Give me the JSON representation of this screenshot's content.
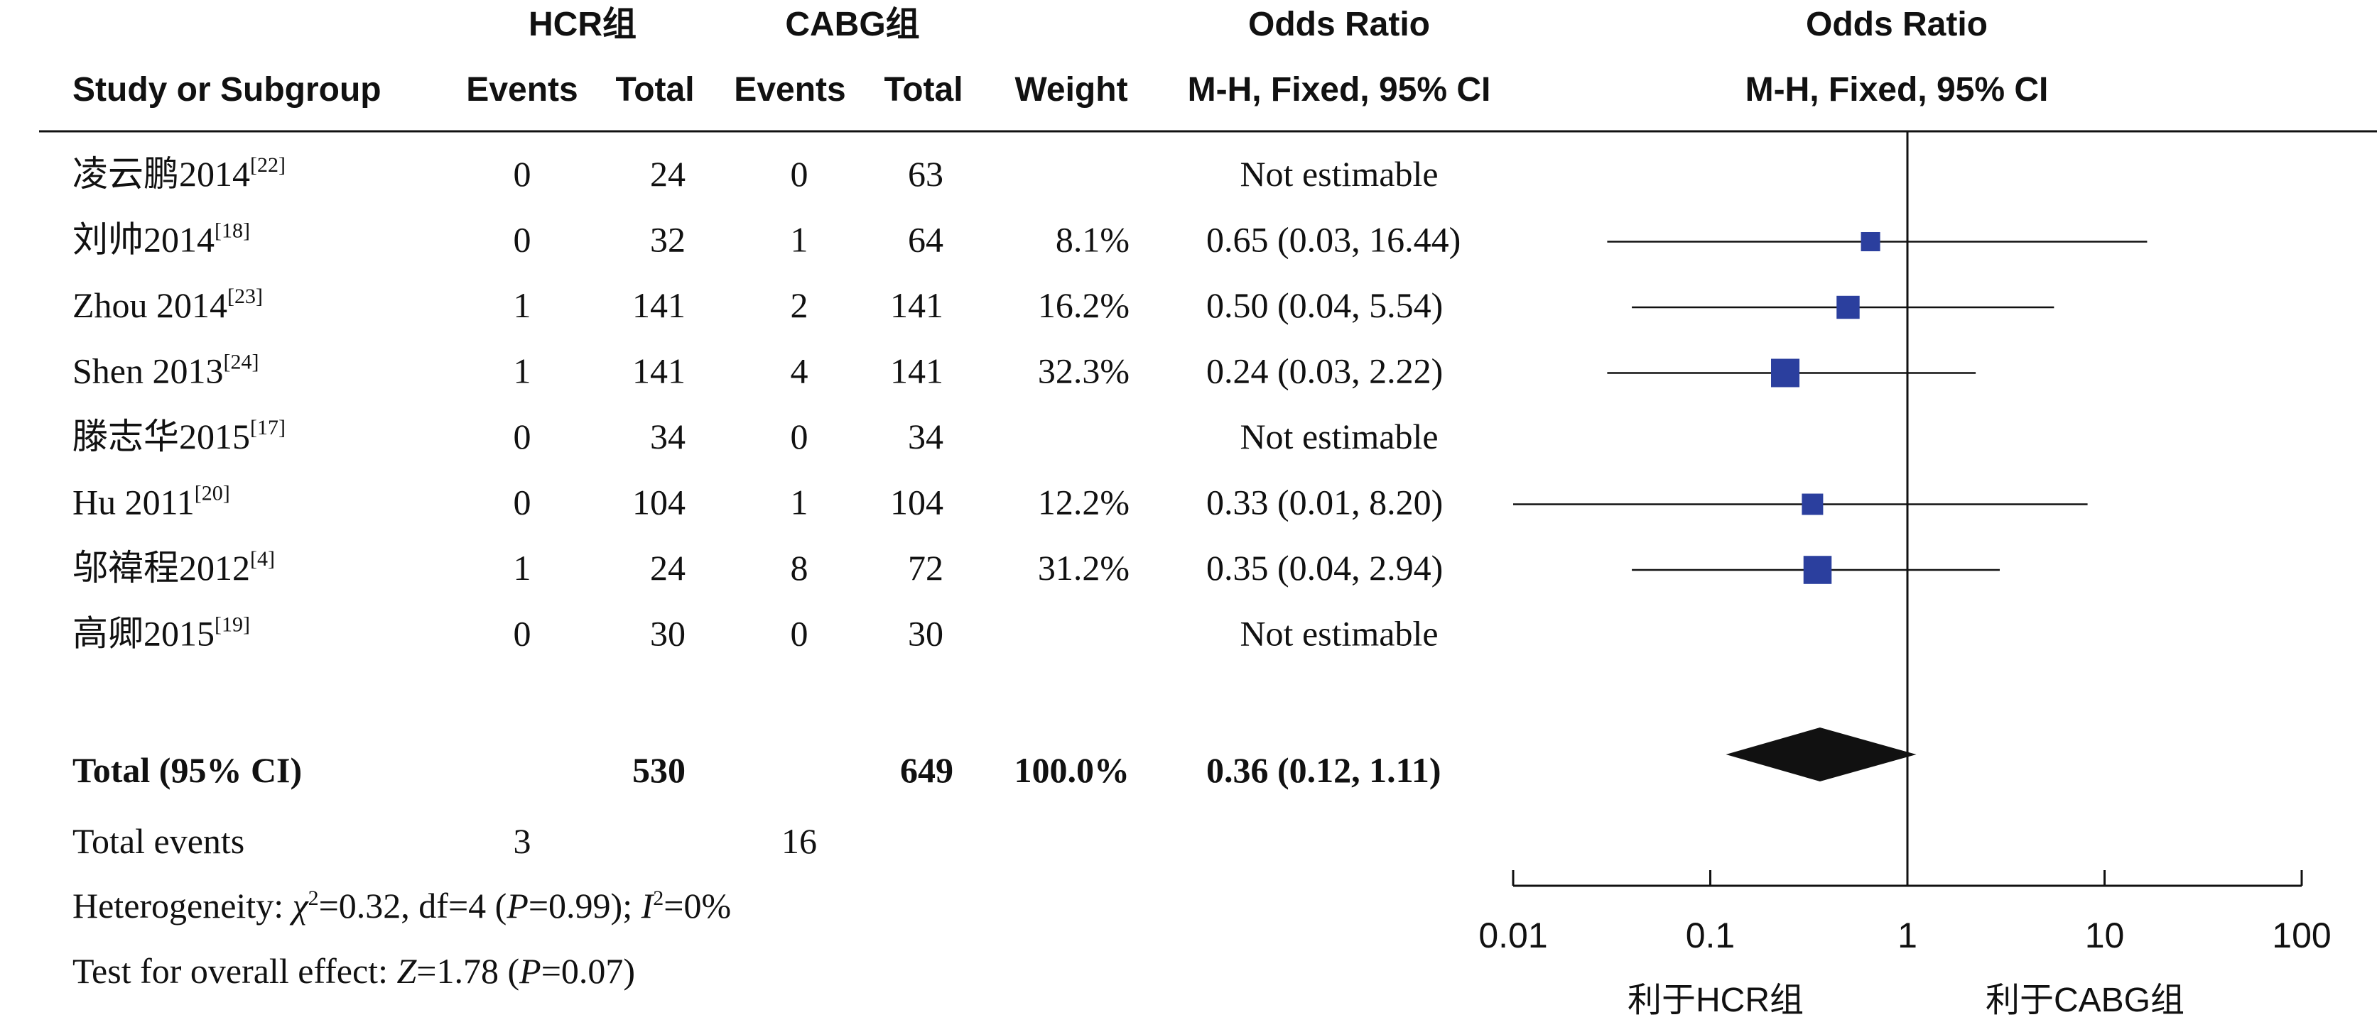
{
  "headers": {
    "group1": "HCR组",
    "group2": "CABG组",
    "or_top1": "Odds Ratio",
    "or_top2": "Odds Ratio",
    "study": "Study or Subgroup",
    "events1": "Events",
    "total1": "Total",
    "events2": "Events",
    "total2": "Total",
    "weight": "Weight",
    "method1": "M-H, Fixed, 95% CI",
    "method2": "M-H, Fixed, 95% CI"
  },
  "studies": [
    {
      "name": "凌云鹏2014",
      "ref": "[22]",
      "e1": "0",
      "t1": "24",
      "e2": "0",
      "t2": "63",
      "weight": "",
      "ci": "Not estimable"
    },
    {
      "name": "刘帅2014",
      "ref": "[18]",
      "e1": "0",
      "t1": "32",
      "e2": "1",
      "t2": "64",
      "weight": "8.1%",
      "ci": "0.65 (0.03, 16.44)"
    },
    {
      "name": "Zhou 2014",
      "ref": "[23]",
      "e1": "1",
      "t1": "141",
      "e2": "2",
      "t2": "141",
      "weight": "16.2%",
      "ci": "0.50 (0.04, 5.54)"
    },
    {
      "name": "Shen 2013",
      "ref": "[24]",
      "e1": "1",
      "t1": "141",
      "e2": "4",
      "t2": "141",
      "weight": "32.3%",
      "ci": "0.24 (0.03, 2.22)"
    },
    {
      "name": "滕志华2015",
      "ref": "[17]",
      "e1": "0",
      "t1": "34",
      "e2": "0",
      "t2": "34",
      "weight": "",
      "ci": "Not estimable"
    },
    {
      "name": "Hu 2011",
      "ref": "[20]",
      "e1": "0",
      "t1": "104",
      "e2": "1",
      "t2": "104",
      "weight": "12.2%",
      "ci": "0.33 (0.01, 8.20)"
    },
    {
      "name": "邬禕程2012",
      "ref": "[4]",
      "e1": "1",
      "t1": "24",
      "e2": "8",
      "t2": "72",
      "weight": "31.2%",
      "ci": "0.35 (0.04, 2.94)"
    },
    {
      "name": "高卿2015",
      "ref": "[19]",
      "e1": "0",
      "t1": "30",
      "e2": "0",
      "t2": "30",
      "weight": "",
      "ci": "Not estimable"
    }
  ],
  "total": {
    "label": "Total (95% CI)",
    "t1": "530",
    "t2": "649",
    "weight": "100.0%",
    "ci": "0.36 (0.12, 1.11)"
  },
  "total_events": {
    "label": "Total events",
    "e1": "3",
    "e2": "16"
  },
  "heterogeneity": {
    "prefix": "Heterogeneity: ",
    "chi": "χ",
    "chi_sq": "2",
    "chi_val": "=0.32, df=4 (",
    "p": "P",
    "p_val": "=0.99); ",
    "i": "I",
    "i_sq": "2",
    "i_val": "=0%"
  },
  "overall_effect": {
    "prefix": "Test for overall effect: ",
    "z": "Z",
    "z_val": "=1.78 (",
    "p": "P",
    "p_val": "=0.07)"
  },
  "axis": {
    "ticks": [
      "0.01",
      "0.1",
      "1",
      "10",
      "100"
    ]
  },
  "favors": {
    "left": "利于HCR组",
    "right": "利于CABG组"
  },
  "colors": {
    "marker": "#2b3f9e",
    "diamond": "#111111",
    "text": "#111111"
  },
  "chart_data": {
    "type": "forest",
    "scale": "log",
    "xlim": [
      0.01,
      100
    ],
    "reference_line": 1,
    "studies": [
      {
        "name": "凌云鹏2014",
        "or": null,
        "lower": null,
        "upper": null,
        "weight": null
      },
      {
        "name": "刘帅2014",
        "or": 0.65,
        "lower": 0.03,
        "upper": 16.44,
        "weight": 8.1
      },
      {
        "name": "Zhou 2014",
        "or": 0.5,
        "lower": 0.04,
        "upper": 5.54,
        "weight": 16.2
      },
      {
        "name": "Shen 2013",
        "or": 0.24,
        "lower": 0.03,
        "upper": 2.22,
        "weight": 32.3
      },
      {
        "name": "滕志华2015",
        "or": null,
        "lower": null,
        "upper": null,
        "weight": null
      },
      {
        "name": "Hu 2011",
        "or": 0.33,
        "lower": 0.01,
        "upper": 8.2,
        "weight": 12.2
      },
      {
        "name": "邬禕程2012",
        "or": 0.35,
        "lower": 0.04,
        "upper": 2.94,
        "weight": 31.2
      },
      {
        "name": "高卿2015",
        "or": null,
        "lower": null,
        "upper": null,
        "weight": null
      }
    ],
    "pooled": {
      "or": 0.36,
      "lower": 0.12,
      "upper": 1.11
    }
  }
}
